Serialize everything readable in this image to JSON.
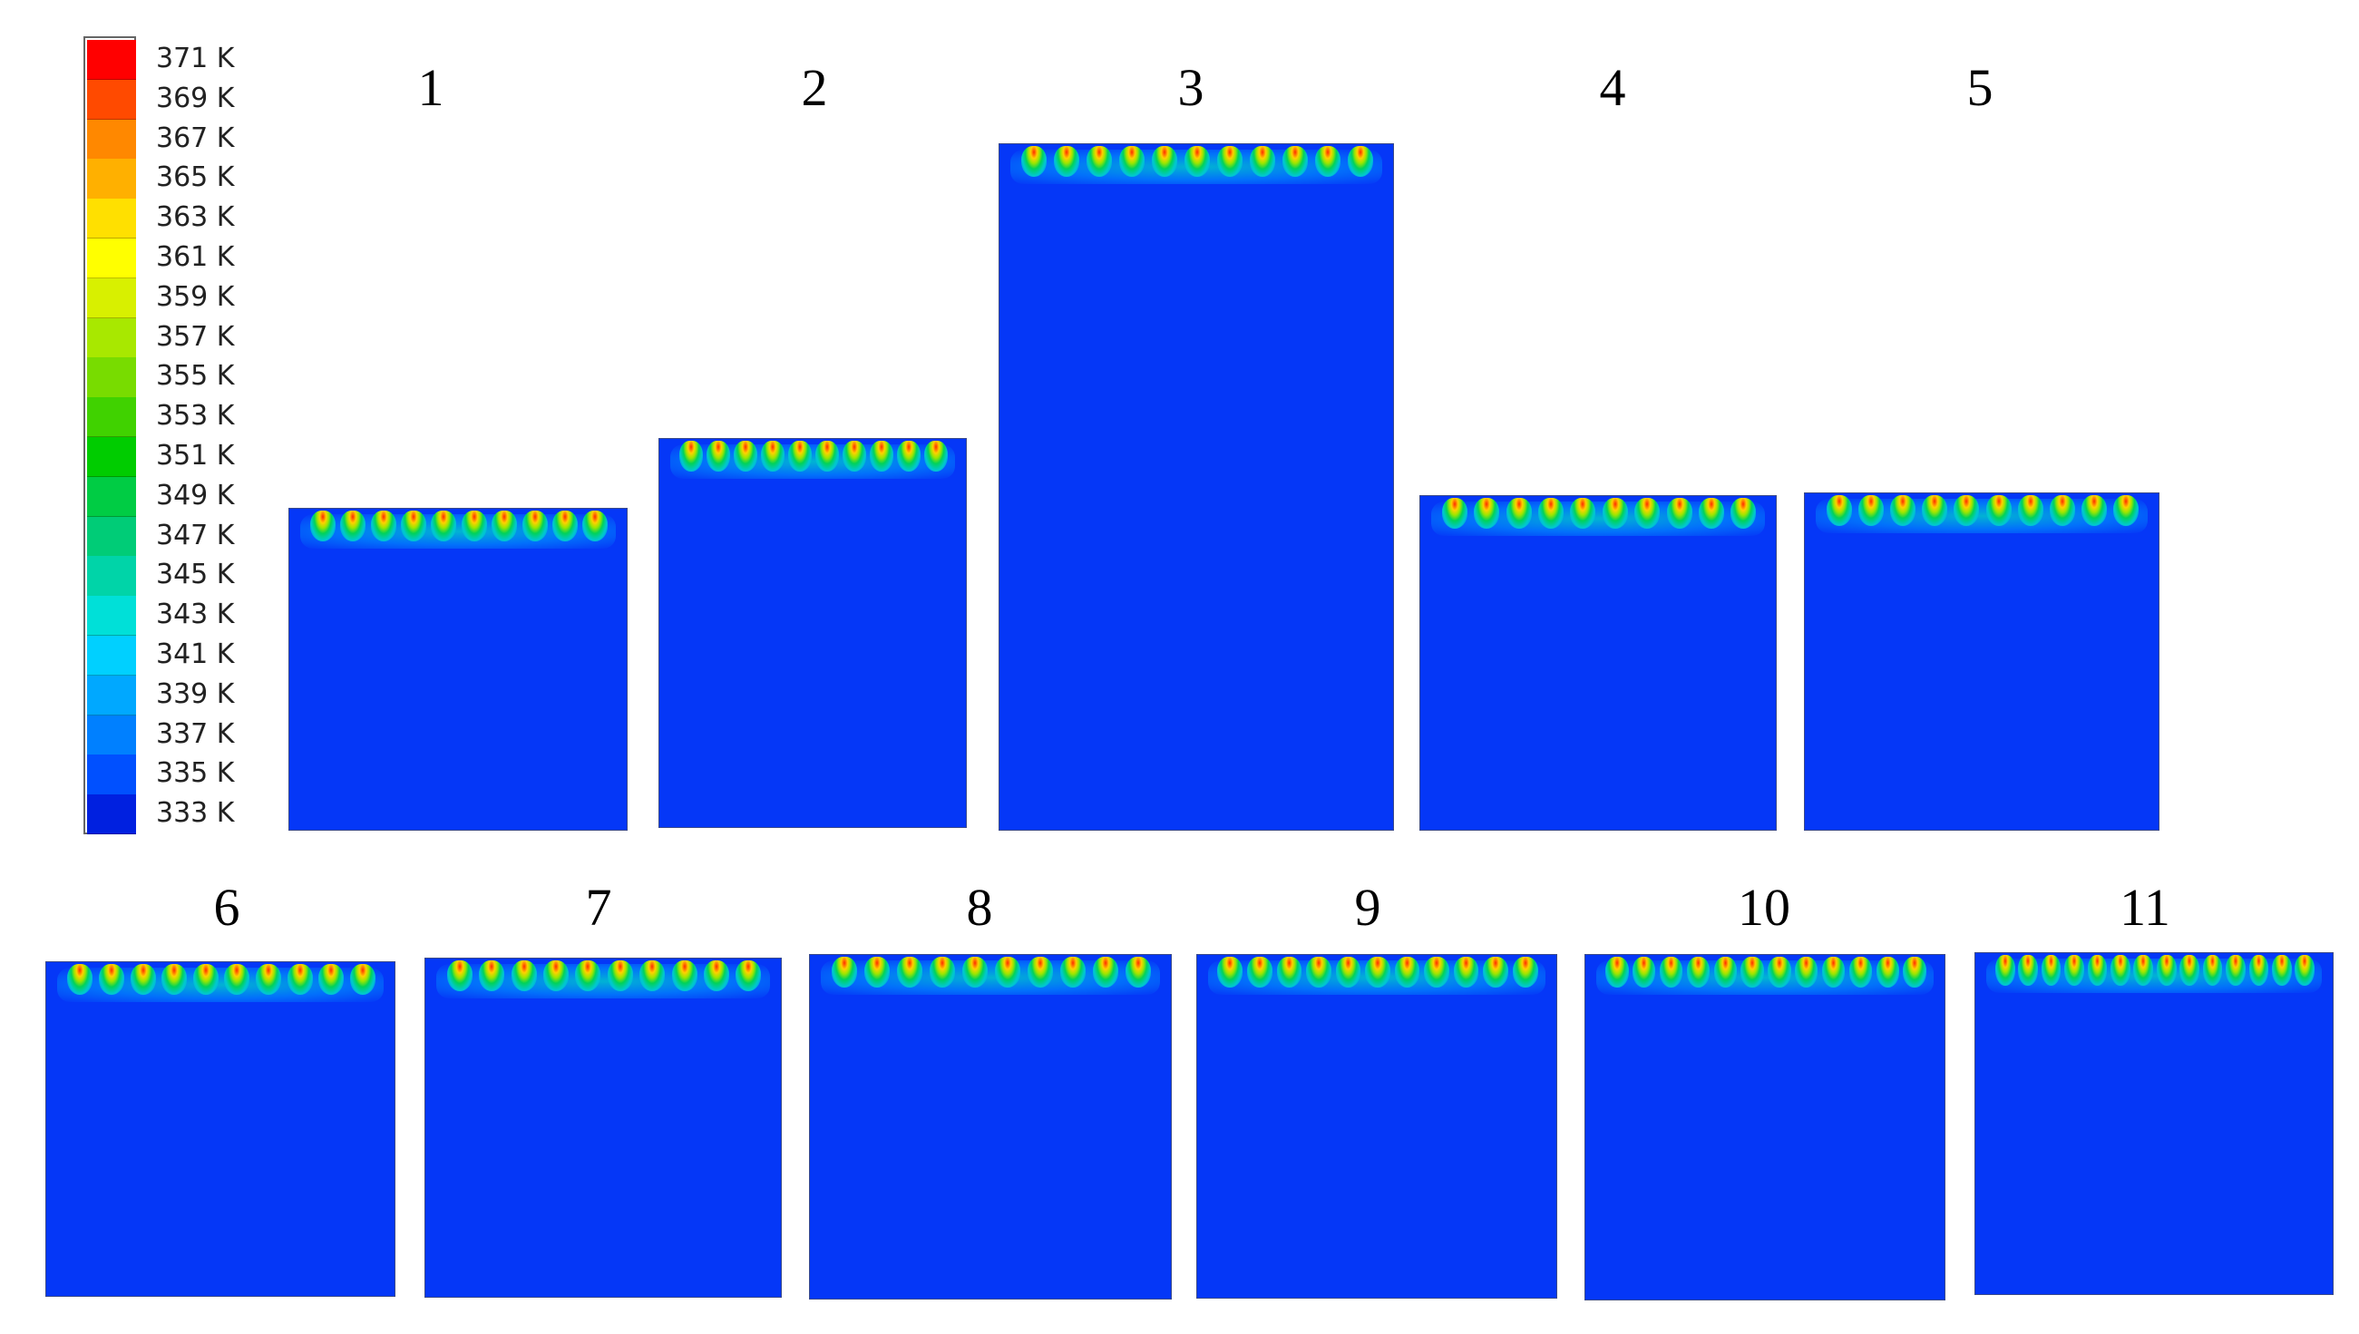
{
  "legend": {
    "labels": [
      "371 K",
      "369 K",
      "367 K",
      "365 K",
      "363 K",
      "361 K",
      "359 K",
      "357 K",
      "355 K",
      "353 K",
      "351 K",
      "349 K",
      "347 K",
      "345 K",
      "343 K",
      "341 K",
      "339 K",
      "337 K",
      "335 K",
      "333 K"
    ],
    "colors": [
      "#ff0000",
      "#ff4a00",
      "#ff8800",
      "#ffb000",
      "#ffe000",
      "#ffff00",
      "#d8f000",
      "#a8e800",
      "#78dc00",
      "#40d200",
      "#00cc00",
      "#00cc44",
      "#00cc77",
      "#00d4a8",
      "#00e0d8",
      "#00d0ff",
      "#00a8ff",
      "#0080ff",
      "#0050ff",
      "#0020e0"
    ]
  },
  "colors": {
    "domain_fill": "#0537f7",
    "background": "#ffffff"
  },
  "panels": [
    {
      "label": "1",
      "plumes": 10
    },
    {
      "label": "2",
      "plumes": 10
    },
    {
      "label": "3",
      "plumes": 11
    },
    {
      "label": "4",
      "plumes": 10
    },
    {
      "label": "5",
      "plumes": 10
    },
    {
      "label": "6",
      "plumes": 10
    },
    {
      "label": "7",
      "plumes": 10
    },
    {
      "label": "8",
      "plumes": 10
    },
    {
      "label": "9",
      "plumes": 11
    },
    {
      "label": "10",
      "plumes": 12
    },
    {
      "label": "11",
      "plumes": 14
    }
  ]
}
